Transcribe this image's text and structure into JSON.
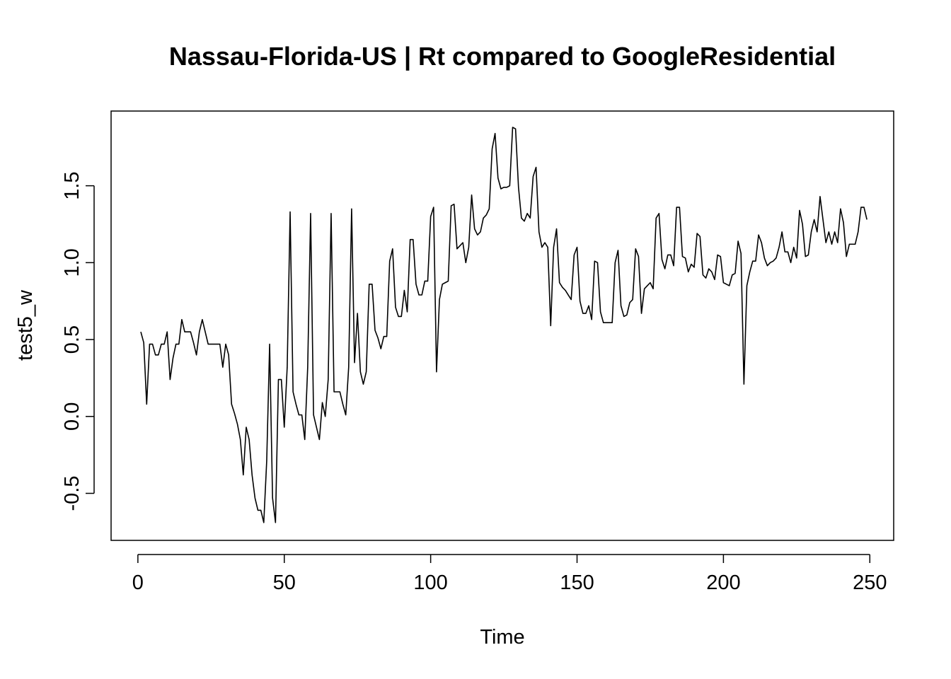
{
  "chart_data": {
    "type": "line",
    "title": "Nassau-Florida-US | Rt compared to GoogleResidential",
    "xlabel": "Time",
    "ylabel": "test5_w",
    "xlim": [
      1,
      248
    ],
    "ylim": [
      -0.7,
      1.88
    ],
    "x_ticks": [
      0,
      50,
      100,
      150,
      200,
      250
    ],
    "y_ticks": [
      -0.5,
      0.0,
      0.5,
      1.0,
      1.5
    ],
    "y_tick_labels": [
      "-0.5",
      "0.0",
      "0.5",
      "1.0",
      "1.5"
    ],
    "grid": false,
    "legend": "none",
    "line_color": "#000000",
    "x_start": 1,
    "values": [
      0.55,
      0.48,
      0.08,
      0.47,
      0.47,
      0.4,
      0.4,
      0.47,
      0.47,
      0.55,
      0.24,
      0.38,
      0.47,
      0.47,
      0.63,
      0.55,
      0.55,
      0.55,
      0.48,
      0.4,
      0.55,
      0.63,
      0.55,
      0.47,
      0.47,
      0.47,
      0.47,
      0.47,
      0.32,
      0.47,
      0.4,
      0.08,
      0.02,
      -0.05,
      -0.15,
      -0.38,
      -0.07,
      -0.15,
      -0.38,
      -0.53,
      -0.61,
      -0.61,
      -0.69,
      -0.29,
      0.47,
      -0.53,
      -0.69,
      0.24,
      0.24,
      -0.07,
      0.32,
      1.33,
      0.16,
      0.08,
      0.01,
      0.01,
      -0.15,
      0.32,
      1.32,
      0.01,
      -0.07,
      -0.15,
      0.09,
      0.0,
      0.24,
      1.32,
      0.16,
      0.16,
      0.16,
      0.08,
      0.01,
      0.32,
      1.35,
      0.35,
      0.67,
      0.29,
      0.21,
      0.29,
      0.86,
      0.86,
      0.56,
      0.51,
      0.44,
      0.52,
      0.52,
      1.01,
      1.09,
      0.71,
      0.65,
      0.65,
      0.82,
      0.68,
      1.15,
      1.15,
      0.86,
      0.79,
      0.79,
      0.88,
      0.88,
      1.3,
      1.36,
      0.29,
      0.76,
      0.86,
      0.87,
      0.88,
      1.37,
      1.38,
      1.09,
      1.11,
      1.13,
      1.0,
      1.1,
      1.44,
      1.22,
      1.18,
      1.2,
      1.29,
      1.31,
      1.35,
      1.74,
      1.84,
      1.55,
      1.48,
      1.49,
      1.49,
      1.5,
      1.88,
      1.87,
      1.49,
      1.29,
      1.27,
      1.32,
      1.29,
      1.56,
      1.62,
      1.2,
      1.1,
      1.13,
      1.1,
      0.59,
      1.1,
      1.22,
      0.87,
      0.84,
      0.82,
      0.79,
      0.76,
      1.05,
      1.1,
      0.75,
      0.67,
      0.67,
      0.72,
      0.63,
      1.01,
      1.0,
      0.68,
      0.61,
      0.61,
      0.61,
      0.61,
      1.0,
      1.08,
      0.72,
      0.65,
      0.66,
      0.74,
      0.76,
      1.09,
      1.04,
      0.67,
      0.83,
      0.85,
      0.87,
      0.83,
      1.29,
      1.32,
      1.02,
      0.96,
      1.05,
      1.05,
      0.98,
      1.36,
      1.36,
      1.04,
      1.03,
      0.94,
      0.99,
      0.97,
      1.19,
      1.17,
      0.92,
      0.9,
      0.96,
      0.94,
      0.89,
      1.05,
      1.04,
      0.87,
      0.86,
      0.85,
      0.92,
      0.93,
      1.14,
      1.06,
      0.21,
      0.85,
      0.94,
      1.01,
      1.01,
      1.18,
      1.13,
      1.03,
      0.98,
      1.0,
      1.01,
      1.03,
      1.1,
      1.2,
      1.07,
      1.07,
      1.0,
      1.1,
      1.03,
      1.34,
      1.25,
      1.04,
      1.05,
      1.2,
      1.28,
      1.2,
      1.43,
      1.28,
      1.13,
      1.2,
      1.12,
      1.2,
      1.13,
      1.35,
      1.26,
      1.04,
      1.12,
      1.12,
      1.12,
      1.2,
      1.36,
      1.36,
      1.28
    ]
  }
}
